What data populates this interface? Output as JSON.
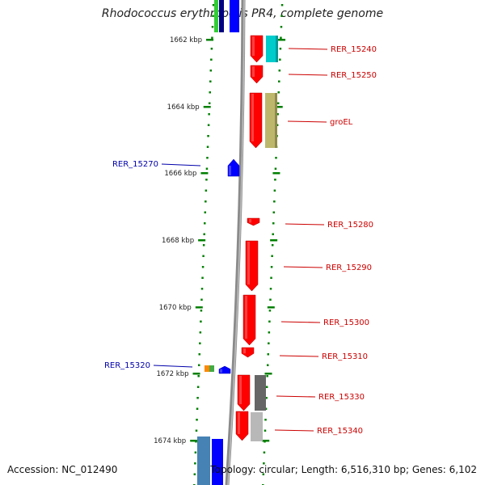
{
  "title": "Rhodococcus erythropolis PR4, complete genome",
  "accession": "Accession: NC_012490",
  "summary": "Topology: circular; Length: 6,516,310 bp; Genes: 6,102",
  "colors": {
    "forward_cds": "#ff0000",
    "reverse_cds": "#0000ff",
    "label_forward": "#cc0000",
    "label_reverse": "#0000aa",
    "tick": "#008000",
    "backbone": "#888888"
  },
  "scale_labels": [
    {
      "kbp": 1662,
      "text": "1662 kbp"
    },
    {
      "kbp": 1664,
      "text": "1664 kbp"
    },
    {
      "kbp": 1666,
      "text": "1666 kbp"
    },
    {
      "kbp": 1668,
      "text": "1668 kbp"
    },
    {
      "kbp": 1670,
      "text": "1670 kbp"
    },
    {
      "kbp": 1672,
      "text": "1672 kbp"
    },
    {
      "kbp": 1674,
      "text": "1674 kbp"
    }
  ],
  "genes": [
    {
      "name": "RER_15240",
      "strand": "forward"
    },
    {
      "name": "RER_15250",
      "strand": "forward"
    },
    {
      "name": "groEL",
      "strand": "forward"
    },
    {
      "name": "RER_15270",
      "strand": "reverse"
    },
    {
      "name": "RER_15280",
      "strand": "forward"
    },
    {
      "name": "RER_15290",
      "strand": "forward"
    },
    {
      "name": "RER_15300",
      "strand": "forward"
    },
    {
      "name": "RER_15310",
      "strand": "forward"
    },
    {
      "name": "RER_15320",
      "strand": "reverse"
    },
    {
      "name": "RER_15330",
      "strand": "forward"
    },
    {
      "name": "RER_15340",
      "strand": "forward"
    }
  ]
}
